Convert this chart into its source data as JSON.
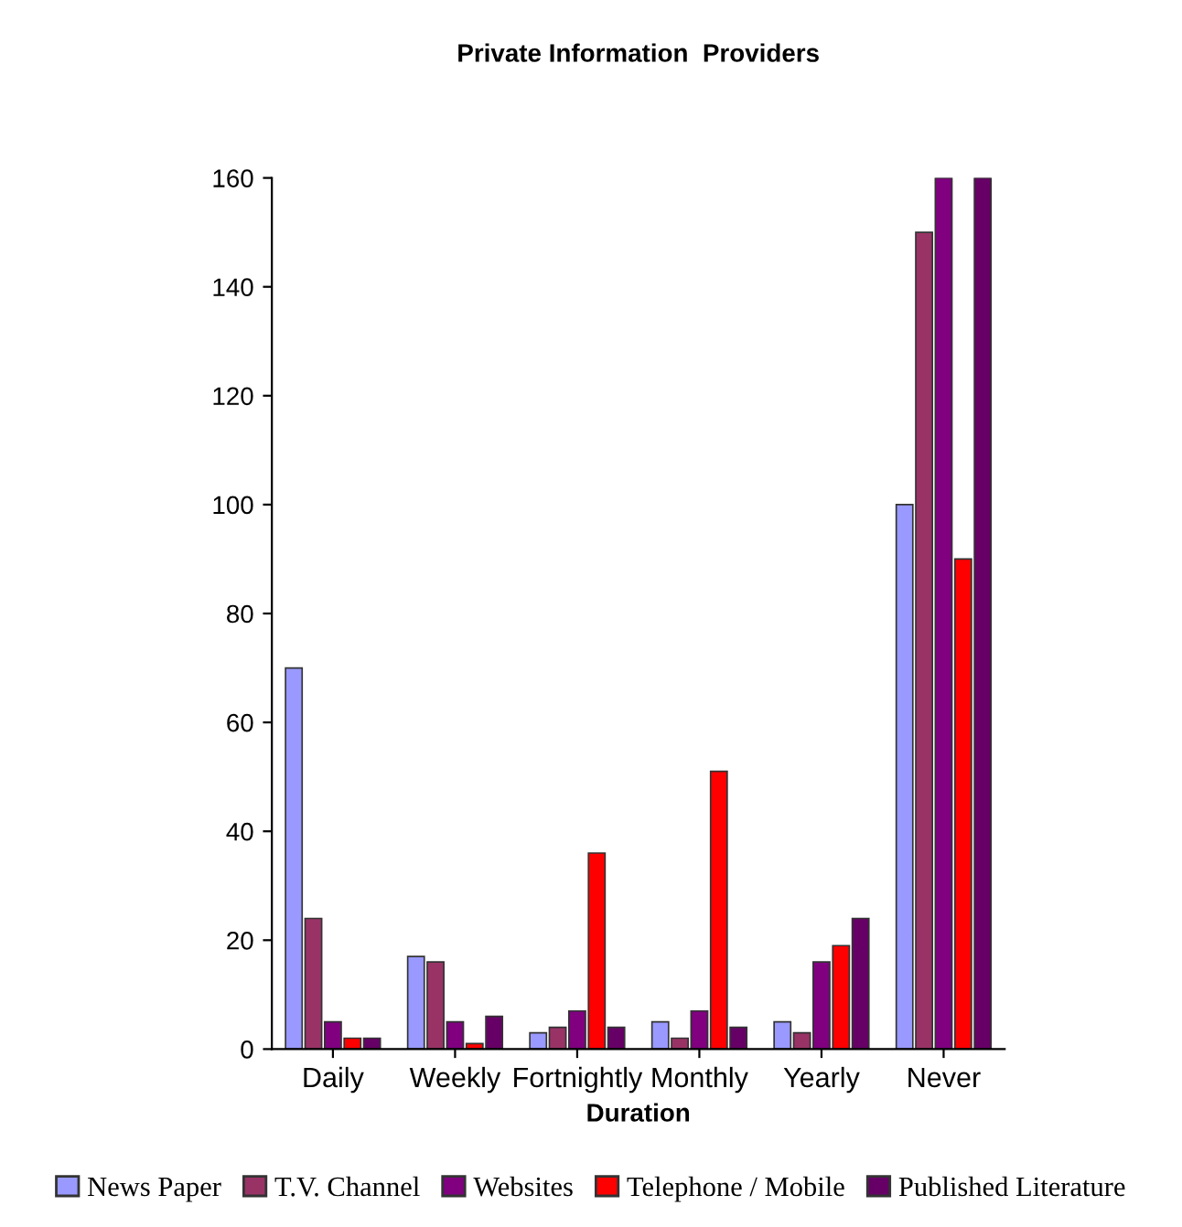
{
  "chart_data": {
    "type": "bar",
    "title": "Private Information  Providers",
    "xlabel": "Duration",
    "categories": [
      "Daily",
      "Weekly",
      "Fortnightly",
      "Monthly",
      "Yearly",
      "Never"
    ],
    "series": [
      {
        "name": "News Paper",
        "color": "#9999ff",
        "values": [
          70,
          17,
          3,
          5,
          5,
          100
        ]
      },
      {
        "name": "T.V. Channel",
        "color": "#993366",
        "values": [
          24,
          16,
          4,
          2,
          3,
          150
        ]
      },
      {
        "name": "Websites",
        "color": "#800080",
        "values": [
          5,
          5,
          7,
          7,
          16,
          160
        ]
      },
      {
        "name": "Telephone / Mobile",
        "color": "#ff0000",
        "values": [
          2,
          1,
          36,
          51,
          19,
          90
        ]
      },
      {
        "name": "Published Literature",
        "color": "#660066",
        "values": [
          2,
          6,
          4,
          4,
          24,
          160
        ]
      }
    ],
    "ylim": [
      0,
      160
    ],
    "yticks": [
      0,
      20,
      40,
      60,
      80,
      100,
      120,
      140,
      160
    ],
    "grid": false,
    "legend": "bottom"
  }
}
